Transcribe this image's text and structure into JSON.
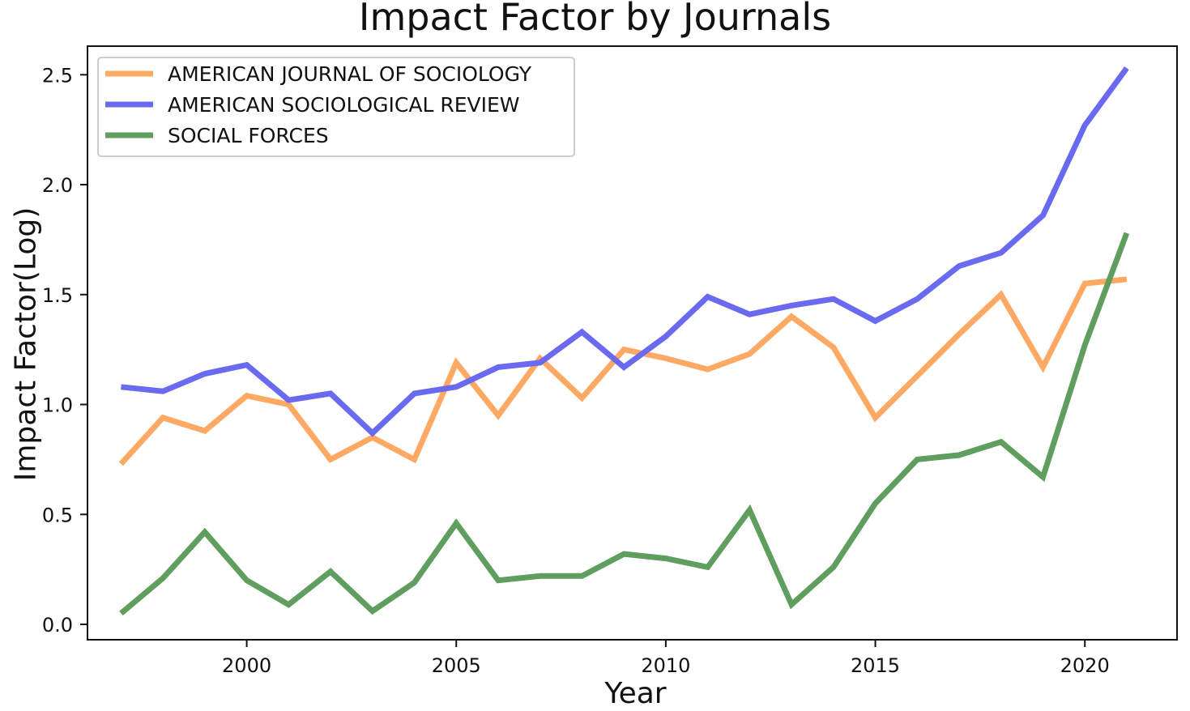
{
  "chart_data": {
    "type": "line",
    "title": "Impact Factor by Journals",
    "xlabel": "Year",
    "ylabel": "Impact Factor(Log)",
    "xlim": [
      1996.2,
      2022.2
    ],
    "ylim": [
      -0.07,
      2.63
    ],
    "xticks": [
      2000,
      2005,
      2010,
      2015,
      2020
    ],
    "xtick_labels": [
      "2000",
      "2005",
      "2010",
      "2015",
      "2020"
    ],
    "yticks": [
      0.0,
      0.5,
      1.0,
      1.5,
      2.0,
      2.5
    ],
    "ytick_labels": [
      "0.0",
      "0.5",
      "1.0",
      "1.5",
      "2.0",
      "2.5"
    ],
    "grid": false,
    "legend_position": "upper-left",
    "x": [
      1997,
      1998,
      1999,
      2000,
      2001,
      2002,
      2003,
      2004,
      2005,
      2006,
      2007,
      2008,
      2009,
      2010,
      2011,
      2012,
      2013,
      2014,
      2015,
      2016,
      2017,
      2018,
      2019,
      2020,
      2021
    ],
    "series": [
      {
        "name": "AMERICAN JOURNAL OF SOCIOLOGY",
        "color": "#fda863",
        "values": [
          0.73,
          0.94,
          0.88,
          1.04,
          1.0,
          0.75,
          0.85,
          0.75,
          1.19,
          0.95,
          1.21,
          1.03,
          1.25,
          1.21,
          1.16,
          1.23,
          1.4,
          1.26,
          0.94,
          1.13,
          1.32,
          1.5,
          1.17,
          1.55,
          1.57
        ]
      },
      {
        "name": "AMERICAN SOCIOLOGICAL REVIEW",
        "color": "#6a6af1",
        "values": [
          1.08,
          1.06,
          1.14,
          1.18,
          1.02,
          1.05,
          0.87,
          1.05,
          1.08,
          1.17,
          1.19,
          1.33,
          1.17,
          1.31,
          1.49,
          1.41,
          1.45,
          1.48,
          1.38,
          1.48,
          1.63,
          1.69,
          1.86,
          2.27,
          2.53
        ]
      },
      {
        "name": "SOCIAL FORCES",
        "color": "#5f9e5f",
        "values": [
          0.05,
          0.21,
          0.42,
          0.2,
          0.09,
          0.24,
          0.06,
          0.19,
          0.46,
          0.2,
          0.22,
          0.22,
          0.32,
          0.3,
          0.26,
          0.52,
          0.09,
          0.26,
          0.55,
          0.75,
          0.77,
          0.83,
          0.67,
          1.27,
          1.78
        ]
      }
    ]
  }
}
